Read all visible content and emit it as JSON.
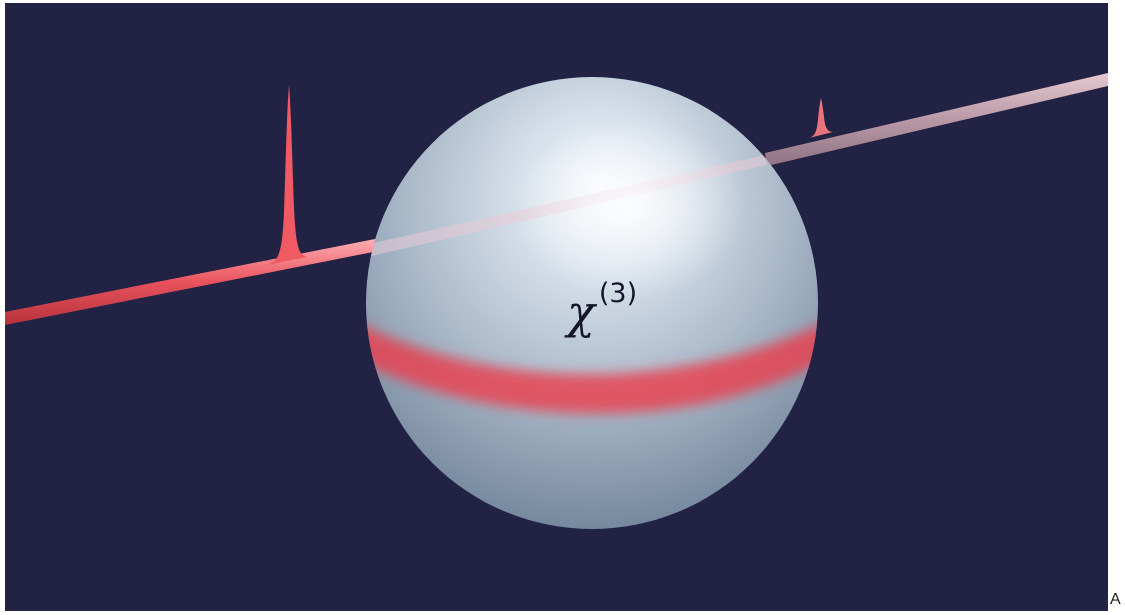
{
  "figure": {
    "symbol": "χ",
    "superscript": "(3)",
    "corner_letter": "A"
  },
  "colors": {
    "background": "#222244",
    "fiber_red": "#e8555f",
    "pulse_red": "#ef5a63",
    "sphere_light": "#e6eef6",
    "sphere_dark": "#7b8fa6",
    "mode_band": "#ee3a48"
  }
}
